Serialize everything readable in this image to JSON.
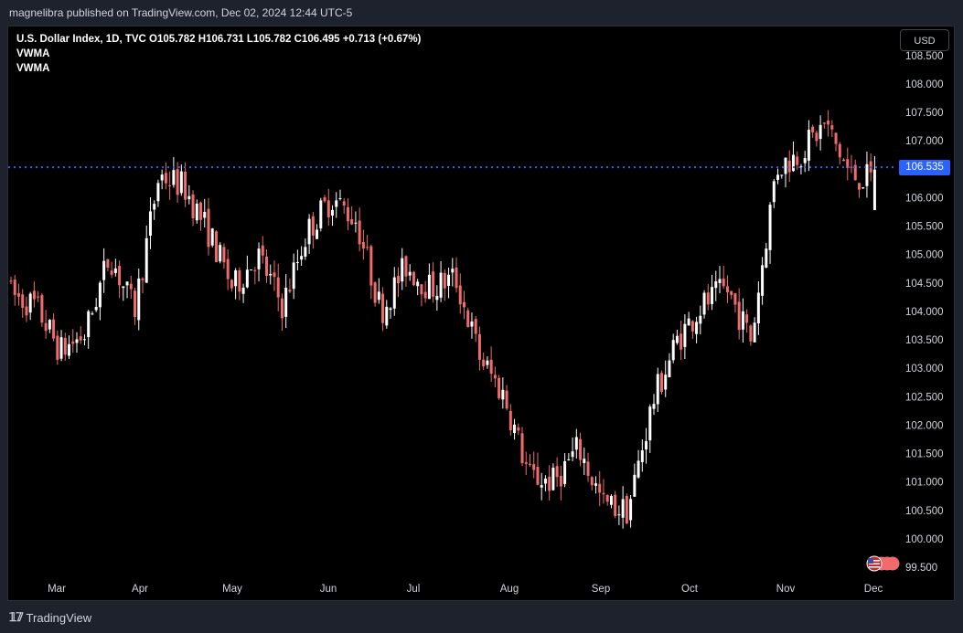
{
  "header": {
    "attribution": "magnelibra published on TradingView.com, Dec 02, 2024 12:44 UTC-5"
  },
  "legend": {
    "symbol_line": "U.S. Dollar Index, 1D, TVC  O105.782  H106.731  L105.782  C106.495  +0.713 (+0.67%)",
    "indicator1": "VWMA",
    "indicator2": "VWMA"
  },
  "currency_button": "USD",
  "price_tag": "106.535",
  "footer": {
    "brand": "TradingView"
  },
  "colors": {
    "up": "#ffffff",
    "down": "#f06b6b",
    "line": "#2962ff",
    "background": "#000000"
  },
  "chart_data": {
    "type": "candlestick",
    "title": "U.S. Dollar Index, 1D, TVC",
    "y_ticks": [
      "108.500",
      "108.000",
      "107.500",
      "107.000",
      "106.000",
      "105.500",
      "105.000",
      "104.500",
      "104.000",
      "103.500",
      "103.000",
      "102.500",
      "102.000",
      "101.500",
      "101.000",
      "100.500",
      "100.000",
      "99.500"
    ],
    "x_ticks": [
      "Mar",
      "Apr",
      "May",
      "Jun",
      "Jul",
      "Aug",
      "Sep",
      "Oct",
      "Nov",
      "Dec"
    ],
    "ylim": [
      99.35,
      108.75
    ],
    "horizontal_line": 106.535,
    "anchors": [
      [
        104.6,
        104.3
      ],
      [
        103.7,
        104.1
      ],
      [
        102.7,
        103.3
      ],
      [
        103.6,
        103.6
      ],
      [
        104.7,
        105.0
      ],
      [
        104.0,
        104.0
      ],
      [
        106.0,
        106.4
      ],
      [
        105.6,
        106.2
      ],
      [
        105.4,
        105.4
      ],
      [
        104.6,
        104.4
      ],
      [
        104.6,
        105.0
      ],
      [
        104.1,
        104.1
      ],
      [
        105.3,
        105.4
      ],
      [
        105.9,
        106.0
      ],
      [
        105.4,
        105.6
      ],
      [
        104.0,
        104.0
      ],
      [
        104.8,
        104.8
      ],
      [
        104.3,
        104.4
      ],
      [
        104.3,
        104.6
      ],
      [
        103.5,
        103.2
      ],
      [
        102.8,
        102.5
      ],
      [
        101.8,
        101.1
      ],
      [
        100.6,
        101.0
      ],
      [
        101.8,
        101.6
      ],
      [
        101.0,
        100.6
      ],
      [
        100.3,
        100.5
      ],
      [
        101.3,
        102.4
      ],
      [
        103.0,
        103.5
      ],
      [
        104.0,
        104.1
      ],
      [
        104.3,
        104.4
      ],
      [
        103.7,
        103.5
      ],
      [
        105.1,
        106.5
      ],
      [
        106.6,
        106.8
      ],
      [
        106.5,
        107.3
      ],
      [
        107.2,
        106.4
      ],
      [
        105.8,
        106.3
      ]
    ]
  }
}
